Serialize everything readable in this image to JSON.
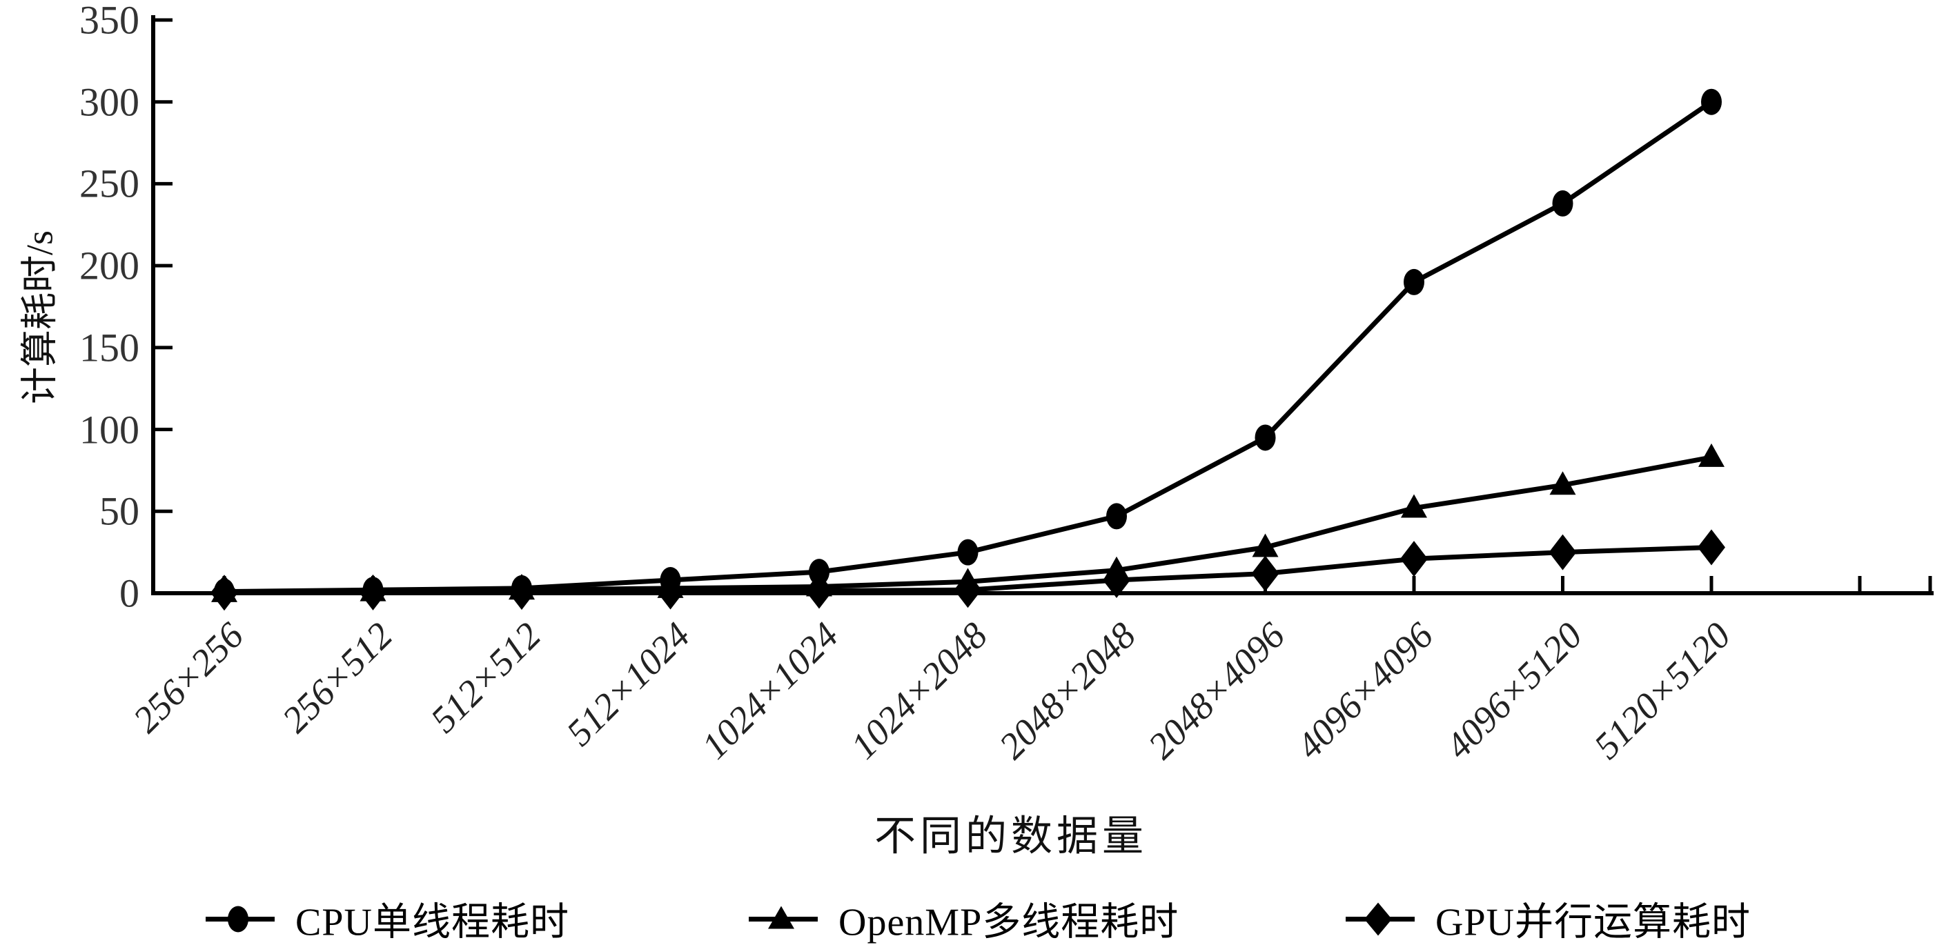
{
  "figure": {
    "background": "#ffffff",
    "ink_color": "#000000",
    "tick_text_color": "#333333"
  },
  "chart_data": {
    "type": "line",
    "title": "",
    "xlabel": "不同的数据量",
    "ylabel": "计算耗时/s",
    "ylim": [
      0,
      350
    ],
    "yticks": [
      0,
      50,
      100,
      150,
      200,
      250,
      300,
      350
    ],
    "grid": false,
    "legend_position": "bottom",
    "categories": [
      "256×256",
      "256×512",
      "512×512",
      "512×1024",
      "1024×1024",
      "1024×2048",
      "2048×2048",
      "2048×4096",
      "4096×4096",
      "4096×5120",
      "5120×5120"
    ],
    "series": [
      {
        "name": "CPU单线程耗时",
        "marker": "circle",
        "color": "#000000",
        "values": [
          1,
          2,
          3,
          8,
          13,
          25,
          47,
          95,
          190,
          238,
          300
        ]
      },
      {
        "name": "OpenMP多线程耗时",
        "marker": "triangle",
        "color": "#000000",
        "values": [
          0.5,
          1,
          2,
          3,
          4,
          7,
          14,
          28,
          52,
          66,
          83
        ]
      },
      {
        "name": "GPU并行运算耗时",
        "marker": "diamond",
        "color": "#000000",
        "values": [
          0.3,
          0.5,
          0.8,
          1,
          1.5,
          2,
          8,
          12,
          21,
          25,
          28
        ]
      }
    ]
  }
}
